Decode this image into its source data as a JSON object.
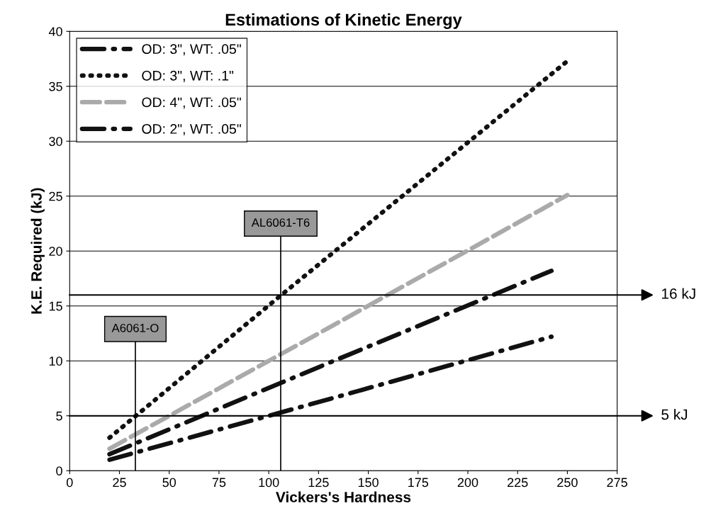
{
  "chart_data": {
    "type": "line",
    "title": "Estimations of Kinetic Energy",
    "xlabel": "Vickers's Hardness",
    "ylabel": "K.E. Required (kJ)",
    "series": [
      {
        "name": "OD: 3\", WT: .05\"",
        "color": "#111111",
        "line_style": "dashdot",
        "x": [
          20,
          130,
          242
        ],
        "values": [
          1.5,
          9.8,
          18.2
        ]
      },
      {
        "name": "OD: 3\", WT: .1\"",
        "color": "#111111",
        "line_style": "dotted",
        "x": [
          20,
          105,
          250
        ],
        "values": [
          3.0,
          15.8,
          37.3
        ]
      },
      {
        "name": "OD: 4\", WT: .05\"",
        "color": "#aaaaaa",
        "line_style": "dashed",
        "x": [
          20,
          130,
          250
        ],
        "values": [
          2.0,
          13.0,
          25.1
        ]
      },
      {
        "name": "OD: 2\", WT: .05\"",
        "color": "#111111",
        "line_style": "dashdot",
        "x": [
          20,
          130,
          242
        ],
        "values": [
          1.0,
          6.5,
          12.2
        ]
      }
    ],
    "xlim": [
      0,
      275
    ],
    "xticks": [
      0,
      25,
      50,
      75,
      100,
      125,
      150,
      175,
      200,
      225,
      250,
      275
    ],
    "ylim": [
      0,
      40
    ],
    "yticks": [
      0,
      5,
      10,
      15,
      20,
      25,
      30,
      35,
      40
    ],
    "grid": "y",
    "legend": "top left",
    "marker": "none",
    "ref_lines": [
      {
        "axis": "y",
        "value": 16,
        "label": "16 kJ",
        "color": "#000000"
      },
      {
        "axis": "y",
        "value": 5,
        "label": "5 kJ",
        "color": "#000000"
      },
      {
        "axis": "x",
        "value": 33,
        "label": "A6061-O",
        "color": "#000000"
      },
      {
        "axis": "x",
        "value": 106,
        "label": "AL6061-T6",
        "color": "#000000"
      }
    ]
  }
}
